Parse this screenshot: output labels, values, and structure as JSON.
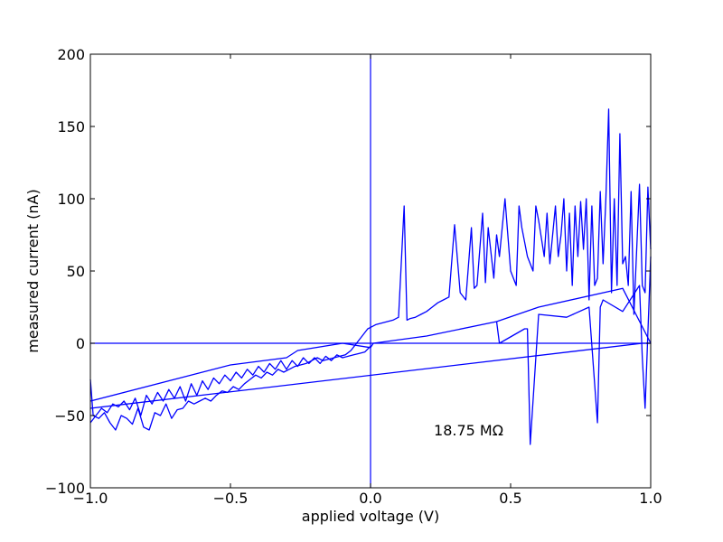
{
  "chart_data": {
    "type": "line",
    "title": "",
    "xlabel": "applied voltage (V)",
    "ylabel": "measured current (nA)",
    "xlim": [
      -1.0,
      1.0
    ],
    "ylim": [
      -100,
      200
    ],
    "xticks": [
      -1.0,
      -0.5,
      0.0,
      0.5,
      1.0
    ],
    "xtick_labels": [
      "−1.0",
      "−0.5",
      "0.0",
      "0.5",
      "1.0"
    ],
    "yticks": [
      -100,
      -50,
      0,
      50,
      100,
      150,
      200
    ],
    "ytick_labels": [
      "−100",
      "−50",
      "0",
      "50",
      "100",
      "150",
      "200"
    ],
    "grid": false,
    "line_color": "#0000ff",
    "annotation": {
      "text": "18.75 MΩ",
      "x": 0.35,
      "y": -60
    },
    "reference_lines": {
      "horizontal_y": 0,
      "vertical_x": 0
    },
    "series": [
      {
        "x": [
          -1.0,
          -0.99,
          -0.97,
          -0.95,
          -0.93,
          -0.91,
          -0.89,
          -0.87,
          -0.85,
          -0.83,
          -0.81,
          -0.79,
          -0.77,
          -0.75,
          -0.73,
          -0.71,
          -0.69,
          -0.67,
          -0.65,
          -0.63,
          -0.61,
          -0.59,
          -0.57,
          -0.55,
          -0.53,
          -0.51,
          -0.49,
          -0.47,
          -0.45,
          -0.43,
          -0.41,
          -0.39,
          -0.37,
          -0.35,
          -0.33,
          -0.31,
          -0.29,
          -0.27,
          -0.25,
          -0.23,
          -0.21,
          -0.19,
          -0.17,
          -0.15,
          -0.13,
          -0.11,
          -0.09,
          -0.07,
          -0.05,
          -0.03,
          -0.01,
          0.0,
          0.01,
          0.02,
          0.04,
          0.06,
          0.08,
          0.1,
          0.12,
          0.13,
          0.14,
          0.16,
          0.18,
          0.2,
          0.22,
          0.24,
          0.26,
          0.28,
          0.3,
          0.32,
          0.34,
          0.36,
          0.37,
          0.38,
          0.4,
          0.41,
          0.42,
          0.44,
          0.45,
          0.46,
          0.48,
          0.5,
          0.52,
          0.53,
          0.54,
          0.56,
          0.58,
          0.59,
          0.6,
          0.62,
          0.63,
          0.64,
          0.66,
          0.67,
          0.68,
          0.69,
          0.7,
          0.71,
          0.72,
          0.73,
          0.74,
          0.75,
          0.76,
          0.77,
          0.78,
          0.79,
          0.8,
          0.81,
          0.82,
          0.83,
          0.84,
          0.85,
          0.86,
          0.87,
          0.88,
          0.89,
          0.9,
          0.91,
          0.92,
          0.93,
          0.94,
          0.95,
          0.96,
          0.97,
          0.98,
          0.99,
          1.0
        ],
        "y": [
          -25,
          -50,
          -52,
          -48,
          -55,
          -60,
          -50,
          -52,
          -56,
          -45,
          -58,
          -60,
          -48,
          -50,
          -42,
          -52,
          -46,
          -45,
          -40,
          -42,
          -40,
          -38,
          -40,
          -36,
          -33,
          -34,
          -30,
          -32,
          -28,
          -25,
          -22,
          -24,
          -20,
          -22,
          -18,
          -20,
          -18,
          -16,
          -15,
          -14,
          -12,
          -10,
          -12,
          -11,
          -10,
          -9,
          -8,
          -5,
          0,
          5,
          10,
          11,
          12,
          13,
          14,
          15,
          16,
          18,
          95,
          16,
          17,
          18,
          20,
          22,
          25,
          28,
          30,
          32,
          82,
          35,
          30,
          80,
          38,
          40,
          90,
          42,
          80,
          45,
          75,
          60,
          100,
          50,
          40,
          95,
          80,
          60,
          50,
          95,
          85,
          60,
          90,
          55,
          95,
          60,
          75,
          100,
          50,
          90,
          40,
          95,
          60,
          98,
          65,
          100,
          30,
          95,
          40,
          45,
          105,
          55,
          100,
          162,
          35,
          100,
          40,
          145,
          55,
          60,
          40,
          105,
          20,
          65,
          110,
          40,
          35,
          108,
          65
        ]
      },
      {
        "x": [
          -1.0,
          -0.98,
          -0.96,
          -0.94,
          -0.92,
          -0.9,
          -0.88,
          -0.86,
          -0.84,
          -0.82,
          -0.8,
          -0.78,
          -0.76,
          -0.74,
          -0.72,
          -0.7,
          -0.68,
          -0.66,
          -0.64,
          -0.62,
          -0.6,
          -0.58,
          -0.56,
          -0.54,
          -0.52,
          -0.5,
          -0.48,
          -0.46,
          -0.44,
          -0.42,
          -0.4,
          -0.38,
          -0.36,
          -0.34,
          -0.32,
          -0.3,
          -0.28,
          -0.26,
          -0.24,
          -0.22,
          -0.2,
          -0.18,
          -0.16,
          -0.14,
          -0.12,
          -0.1,
          -0.08,
          -0.06,
          -0.04,
          -0.02,
          0.0
        ],
        "y": [
          -55,
          -50,
          -45,
          -48,
          -42,
          -44,
          -40,
          -46,
          -38,
          -50,
          -36,
          -42,
          -34,
          -40,
          -32,
          -38,
          -30,
          -40,
          -28,
          -36,
          -26,
          -32,
          -24,
          -28,
          -22,
          -26,
          -20,
          -24,
          -18,
          -22,
          -16,
          -20,
          -14,
          -18,
          -12,
          -18,
          -12,
          -16,
          -10,
          -14,
          -10,
          -14,
          -9,
          -12,
          -8,
          -10,
          -9,
          -8,
          -7,
          -6,
          -2
        ]
      },
      {
        "x": [
          -1.0,
          -0.5,
          -0.3,
          -0.26,
          -0.1,
          0.0,
          0.01,
          0.2,
          0.45,
          0.6,
          0.9,
          1.0,
          0.97,
          -1.0
        ],
        "y": [
          -40,
          -15,
          -10,
          -5,
          0,
          -3,
          0,
          5,
          15,
          25,
          38,
          0,
          0,
          -45
        ]
      },
      {
        "x": [
          0.45,
          0.46,
          0.55,
          0.56,
          0.57,
          0.6,
          0.7,
          0.78,
          0.81,
          0.82,
          0.83,
          0.9,
          0.96,
          0.97,
          0.98,
          1.0
        ],
        "y": [
          15,
          0,
          10,
          10,
          -70,
          20,
          18,
          25,
          -55,
          25,
          30,
          22,
          40,
          -10,
          -45,
          60
        ]
      }
    ]
  }
}
